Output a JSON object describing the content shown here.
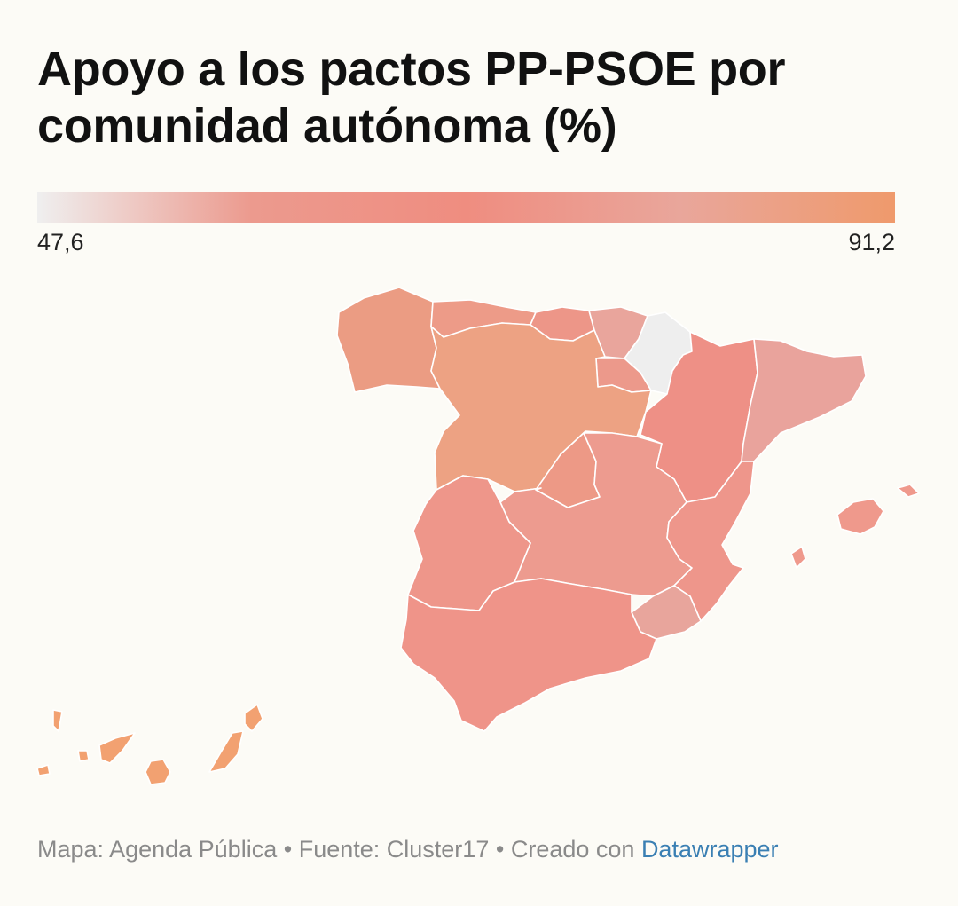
{
  "title": "Apoyo a los pactos PP-PSOE por comunidad autónoma (%)",
  "legend": {
    "min": "47,6",
    "max": "91,2",
    "colors": [
      "#efefef",
      "#ec9a8e",
      "#ef8d80",
      "#e9a69b",
      "#ef9a6c"
    ]
  },
  "footer": {
    "map_label": "Mapa:",
    "map_author": "Agenda Pública",
    "source_label": "Fuente:",
    "source": "Cluster17",
    "created_label": "Creado con",
    "tool": "Datawrapper",
    "separator": "•"
  },
  "regions": [
    {
      "id": "galicia",
      "color": "#eb9c83"
    },
    {
      "id": "asturias",
      "color": "#ed9b88"
    },
    {
      "id": "cantabria",
      "color": "#ed9688"
    },
    {
      "id": "pais-vasco",
      "color": "#e9a59c"
    },
    {
      "id": "navarra",
      "color": "#eeeeee"
    },
    {
      "id": "la-rioja",
      "color": "#ec998b"
    },
    {
      "id": "castilla-y-leon",
      "color": "#eda283"
    },
    {
      "id": "aragon",
      "color": "#ee9086"
    },
    {
      "id": "cataluna",
      "color": "#e9a39c"
    },
    {
      "id": "madrid",
      "color": "#ed9986"
    },
    {
      "id": "castilla-la-mancha",
      "color": "#ed9b8f"
    },
    {
      "id": "extremadura",
      "color": "#ee968a"
    },
    {
      "id": "comunidad-valenciana",
      "color": "#ee968b"
    },
    {
      "id": "murcia",
      "color": "#e8a59c"
    },
    {
      "id": "andalucia",
      "color": "#ef9489"
    },
    {
      "id": "baleares",
      "color": "#ef998c"
    },
    {
      "id": "canarias",
      "color": "#f2a171"
    }
  ]
}
